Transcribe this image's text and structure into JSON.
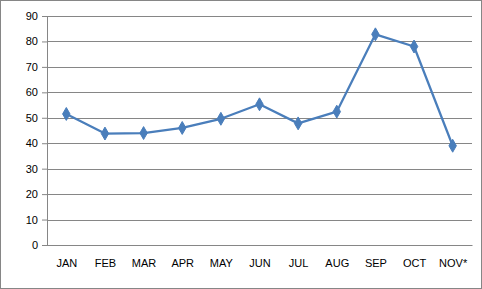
{
  "chart_data": {
    "type": "line",
    "categories": [
      "JAN",
      "FEB",
      "MAR",
      "APR",
      "MAY",
      "JUN",
      "JUL",
      "AUG",
      "SEP",
      "OCT",
      "NOV*"
    ],
    "values": [
      51.5,
      43.8,
      44,
      46,
      49.6,
      55.3,
      47.8,
      52.4,
      82.8,
      78,
      39
    ],
    "color": "#4a7ebb",
    "marker": "diamond",
    "line_style": "solid",
    "ylim": [
      0,
      90
    ],
    "yticks": [
      0,
      10,
      20,
      30,
      40,
      50,
      60,
      70,
      80,
      90
    ],
    "grid": true
  }
}
